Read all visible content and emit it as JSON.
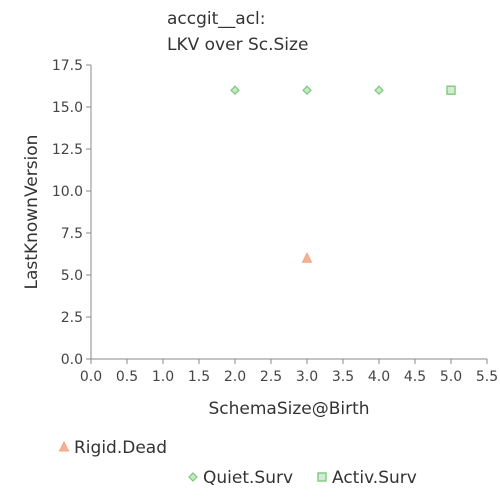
{
  "chart_data": {
    "type": "scatter",
    "title_lines": [
      "accgit__acl:",
      "LKV over Sc.Size"
    ],
    "xlabel": "SchemaSize@Birth",
    "ylabel": "LastKnownVersion",
    "xlim": [
      0.0,
      5.5
    ],
    "ylim": [
      0.0,
      17.5
    ],
    "x_ticks": [
      "0.0",
      "0.5",
      "1.0",
      "1.5",
      "2.0",
      "2.5",
      "3.0",
      "3.5",
      "4.0",
      "4.5",
      "5.0",
      "5.5"
    ],
    "y_ticks": [
      "0.0",
      "2.5",
      "5.0",
      "7.5",
      "10.0",
      "12.5",
      "15.0",
      "17.5"
    ],
    "grid": false,
    "legend_position": "bottom",
    "series": [
      {
        "name": "Rigid.Dead",
        "marker": "triangle",
        "color": "#f4a582",
        "points": [
          {
            "x": 3.0,
            "y": 6.0
          }
        ]
      },
      {
        "name": "Quiet.Surv",
        "marker": "diamond",
        "color": "#7fc97f",
        "points": [
          {
            "x": 2.0,
            "y": 16.0
          },
          {
            "x": 3.0,
            "y": 16.0
          },
          {
            "x": 4.0,
            "y": 16.0
          }
        ]
      },
      {
        "name": "Activ.Surv",
        "marker": "square",
        "color": "#7fc97f",
        "points": [
          {
            "x": 5.0,
            "y": 16.0
          }
        ]
      }
    ]
  }
}
